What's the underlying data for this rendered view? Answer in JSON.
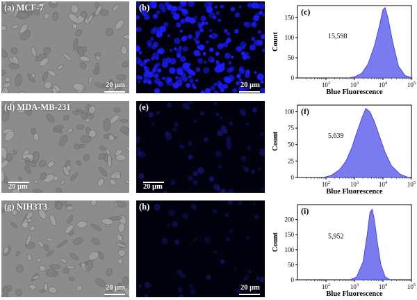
{
  "figure": {
    "rows": [
      {
        "micro_label": "(a) MCF-7",
        "fluor_label": "(b)",
        "micro_scale": "20 μm",
        "fluor_scale": "20 μm",
        "fluor_color": "#1c1cff"
      },
      {
        "micro_label": "(d) MDA-MB-231",
        "fluor_label": "(e)",
        "micro_scale": "20 μm",
        "fluor_scale": "20 μm",
        "fluor_color": "#121266"
      },
      {
        "micro_label": "(g) NIH3T3",
        "fluor_label": "(h)",
        "micro_scale": "20 μm",
        "fluor_scale": "20 μm",
        "fluor_color": "#0f0f4d"
      }
    ]
  },
  "chart_data": [
    {
      "type": "area",
      "panel_label": "(c)",
      "xlabel": "Blue Fluorescence",
      "ylabel": "Count",
      "x_scale": "log",
      "xlim": [
        10,
        100000
      ],
      "x_ticks": [
        100,
        1000,
        10000,
        100000
      ],
      "ylim": [
        0,
        180
      ],
      "y_ticks": [
        0,
        50,
        100,
        150
      ],
      "annotation": "15,598",
      "fill_color": "#7b7bf0",
      "series": [
        {
          "x": [
            600,
            1000,
            1800,
            3000,
            5000,
            7500,
            10000,
            12000,
            15000,
            22000,
            35000,
            60000,
            110000
          ],
          "y": [
            0,
            3,
            12,
            35,
            80,
            130,
            170,
            175,
            150,
            90,
            30,
            6,
            0
          ]
        }
      ]
    },
    {
      "type": "area",
      "panel_label": "(f)",
      "xlabel": "Blue Fluorescence",
      "ylabel": "Count",
      "x_scale": "log",
      "xlim": [
        10,
        100000
      ],
      "x_ticks": [
        100,
        1000,
        10000,
        100000
      ],
      "ylim": [
        0,
        110
      ],
      "y_ticks": [
        0,
        25,
        50,
        75,
        100
      ],
      "annotation": "5,639",
      "fill_color": "#7b7bf0",
      "series": [
        {
          "x": [
            80,
            150,
            300,
            500,
            800,
            1200,
            1800,
            2500,
            3500,
            5000,
            8000,
            12000,
            20000,
            40000,
            80000
          ],
          "y": [
            0,
            3,
            12,
            25,
            45,
            68,
            90,
            105,
            100,
            85,
            60,
            38,
            18,
            5,
            0
          ]
        }
      ]
    },
    {
      "type": "area",
      "panel_label": "(i)",
      "xlabel": "Blue Fluorescence",
      "ylabel": "Count",
      "x_scale": "log",
      "xlim": [
        10,
        100000
      ],
      "x_ticks": [
        100,
        1000,
        10000,
        100000
      ],
      "ylim": [
        0,
        250
      ],
      "y_ticks": [
        0,
        50,
        100,
        150,
        200
      ],
      "annotation": "5,952",
      "fill_color": "#7b7bf0",
      "series": [
        {
          "x": [
            700,
            1200,
            2000,
            2800,
            3500,
            4200,
            5000,
            6500,
            8500,
            12000,
            18000
          ],
          "y": [
            0,
            10,
            60,
            150,
            225,
            235,
            200,
            120,
            50,
            10,
            0
          ]
        }
      ]
    }
  ]
}
